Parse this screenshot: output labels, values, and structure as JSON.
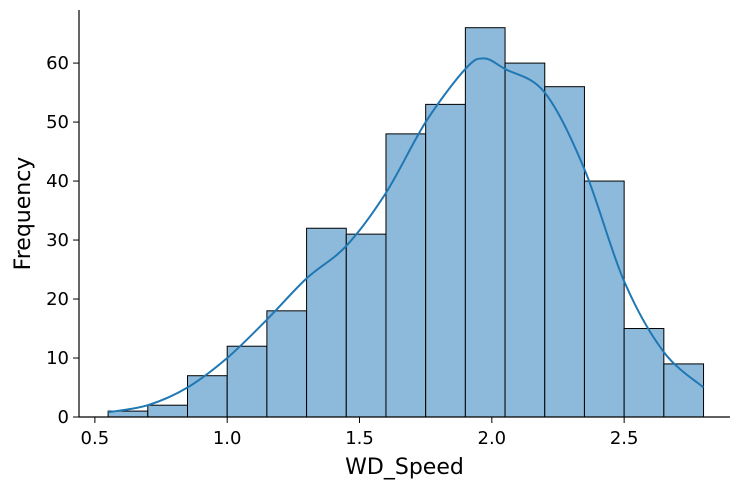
{
  "chart_data": {
    "type": "bar",
    "xlabel": "WD_Speed",
    "ylabel": "Frequency",
    "xlim": [
      0.44,
      2.9
    ],
    "ylim": [
      0,
      69
    ],
    "xticks": [
      "0.5",
      "1.0",
      "1.5",
      "2.0",
      "2.5"
    ],
    "yticks": [
      "0",
      "10",
      "20",
      "30",
      "40",
      "50",
      "60"
    ],
    "bins": [
      {
        "x0": 0.55,
        "x1": 0.7,
        "count": 1
      },
      {
        "x0": 0.7,
        "x1": 0.85,
        "count": 2
      },
      {
        "x0": 0.85,
        "x1": 1.0,
        "count": 7
      },
      {
        "x0": 1.0,
        "x1": 1.15,
        "count": 12
      },
      {
        "x0": 1.15,
        "x1": 1.3,
        "count": 18
      },
      {
        "x0": 1.3,
        "x1": 1.45,
        "count": 32
      },
      {
        "x0": 1.45,
        "x1": 1.6,
        "count": 31
      },
      {
        "x0": 1.6,
        "x1": 1.75,
        "count": 48
      },
      {
        "x0": 1.75,
        "x1": 1.9,
        "count": 53
      },
      {
        "x0": 1.9,
        "x1": 2.05,
        "count": 66
      },
      {
        "x0": 2.05,
        "x1": 2.2,
        "count": 60
      },
      {
        "x0": 2.2,
        "x1": 2.35,
        "count": 56
      },
      {
        "x0": 2.35,
        "x1": 2.5,
        "count": 40
      },
      {
        "x0": 2.5,
        "x1": 2.65,
        "count": 15
      },
      {
        "x0": 2.65,
        "x1": 2.8,
        "count": 9
      }
    ],
    "kde": {
      "x": [
        0.55,
        0.7,
        0.85,
        1.0,
        1.15,
        1.3,
        1.45,
        1.6,
        1.75,
        1.9,
        1.97,
        2.05,
        2.2,
        2.35,
        2.5,
        2.65,
        2.8
      ],
      "y": [
        0.8,
        2.0,
        5.0,
        10.0,
        16.5,
        23.5,
        29.0,
        38.0,
        50.0,
        59.0,
        60.8,
        59.0,
        55.0,
        42.0,
        23.0,
        11.0,
        5.0
      ]
    },
    "bar_color": "#8dbadb",
    "bar_edge_color": "#000000",
    "line_color": "#1f77b4",
    "grid": false,
    "legend": "none"
  }
}
